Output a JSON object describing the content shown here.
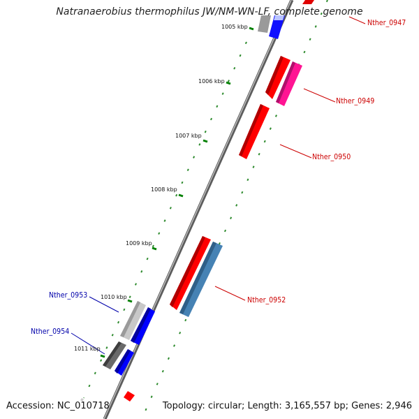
{
  "title": "Natranaerobius thermophilus JW/NM-WN-LF, complete genome",
  "footer": {
    "accession": "Accession: NC_010718",
    "summary": "Topology: circular; Length: 3,165,557 bp; Genes: 2,946"
  },
  "ticks": [
    {
      "label": "1005 kbp"
    },
    {
      "label": "1006 kbp"
    },
    {
      "label": "1007 kbp"
    },
    {
      "label": "1008 kbp"
    },
    {
      "label": "1009 kbp"
    },
    {
      "label": "1010 kbp"
    },
    {
      "label": "1011 kbp"
    }
  ],
  "gene_labels": [
    {
      "name": "Nther_0947",
      "color": "#cc0000"
    },
    {
      "name": "Nther_0949",
      "color": "#cc0000"
    },
    {
      "name": "Nther_0950",
      "color": "#cc0000"
    },
    {
      "name": "Nther_0952",
      "color": "#cc0000"
    },
    {
      "name": "Nther_0953",
      "color": "#0000aa"
    },
    {
      "name": "Nther_0954",
      "color": "#0000aa"
    }
  ],
  "colors": {
    "forward_strand": "#ff0000",
    "reverse_strand": "#0000ff",
    "rna": "#ff1493",
    "other": "#4682b4",
    "pseudo": "#555555",
    "tick": "#008000",
    "backbone": "#808080"
  }
}
